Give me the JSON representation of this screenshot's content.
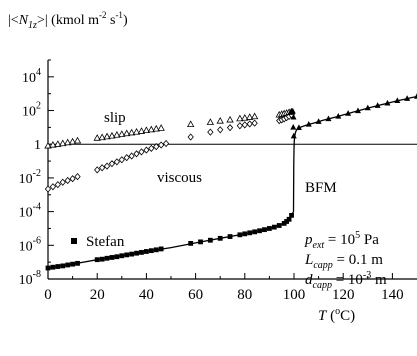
{
  "chart_data": {
    "type": "scatter",
    "ylabel": "|<N1z>| (kmol m-2 s-1)",
    "xlabel": "T (°C)",
    "xlim": [
      0,
      150
    ],
    "ylim_log10": [
      -8,
      5
    ],
    "y_log_scale": true,
    "grid": false,
    "x_ticks": [
      "0",
      "20",
      "40",
      "60",
      "80",
      "100",
      "120",
      "140"
    ],
    "y_ticks": [
      {
        "exp": 4,
        "label": "10^4"
      },
      {
        "exp": 2,
        "label": "10^2"
      },
      {
        "exp": 0,
        "label": "1"
      },
      {
        "exp": -2,
        "label": "10^-2"
      },
      {
        "exp": -4,
        "label": "10^-4"
      },
      {
        "exp": -6,
        "label": "10^-6"
      },
      {
        "exp": -8,
        "label": "10^-8"
      }
    ],
    "reference_line_y": 1,
    "series": [
      {
        "name": "slip",
        "marker": "triangle-open",
        "points": [
          [
            0,
            0.8
          ],
          [
            2,
            0.9
          ],
          [
            4,
            1.0
          ],
          [
            6,
            1.1
          ],
          [
            8,
            1.25
          ],
          [
            10,
            1.4
          ],
          [
            12,
            1.6
          ],
          [
            20,
            2.3
          ],
          [
            22,
            2.5
          ],
          [
            24,
            2.8
          ],
          [
            26,
            3.1
          ],
          [
            28,
            3.5
          ],
          [
            30,
            3.9
          ],
          [
            32,
            4.3
          ],
          [
            34,
            4.8
          ],
          [
            36,
            5.3
          ],
          [
            38,
            5.9
          ],
          [
            40,
            6.6
          ],
          [
            42,
            7.3
          ],
          [
            44,
            8.1
          ],
          [
            46,
            9.0
          ],
          [
            58,
            15
          ],
          [
            66,
            20
          ],
          [
            70,
            24
          ],
          [
            74,
            28
          ],
          [
            78,
            33
          ],
          [
            80,
            36
          ],
          [
            82,
            40
          ],
          [
            84,
            44
          ],
          [
            94,
            55
          ],
          [
            95,
            60
          ],
          [
            96,
            65
          ],
          [
            97,
            70
          ],
          [
            98,
            78
          ],
          [
            99,
            85
          ]
        ]
      },
      {
        "name": "viscous",
        "marker": "diamond-open",
        "points": [
          [
            0,
            0.0022
          ],
          [
            2,
            0.003
          ],
          [
            4,
            0.004
          ],
          [
            6,
            0.0055
          ],
          [
            8,
            0.007
          ],
          [
            10,
            0.009
          ],
          [
            12,
            0.012
          ],
          [
            20,
            0.03
          ],
          [
            22,
            0.04
          ],
          [
            24,
            0.05
          ],
          [
            26,
            0.07
          ],
          [
            28,
            0.09
          ],
          [
            30,
            0.12
          ],
          [
            32,
            0.16
          ],
          [
            34,
            0.2
          ],
          [
            36,
            0.27
          ],
          [
            38,
            0.35
          ],
          [
            40,
            0.45
          ],
          [
            42,
            0.57
          ],
          [
            44,
            0.72
          ],
          [
            46,
            0.9
          ],
          [
            48,
            1.1
          ],
          [
            58,
            2.7
          ],
          [
            66,
            5.2
          ],
          [
            70,
            7.2
          ],
          [
            74,
            9.6
          ],
          [
            78,
            12.5
          ],
          [
            80,
            14
          ],
          [
            82,
            16
          ],
          [
            84,
            18
          ],
          [
            94,
            25
          ],
          [
            95,
            28
          ],
          [
            96,
            32
          ],
          [
            97,
            38
          ],
          [
            98,
            45
          ],
          [
            99,
            55
          ]
        ]
      },
      {
        "name": "Stefan",
        "marker": "square-filled",
        "points": [
          [
            0,
            4.5e-08
          ],
          [
            2,
            5e-08
          ],
          [
            4,
            5.5e-08
          ],
          [
            6,
            6e-08
          ],
          [
            8,
            6.8e-08
          ],
          [
            10,
            7.6e-08
          ],
          [
            12,
            8.5e-08
          ],
          [
            20,
            1.4e-07
          ],
          [
            22,
            1.5e-07
          ],
          [
            24,
            1.7e-07
          ],
          [
            26,
            1.9e-07
          ],
          [
            28,
            2.1e-07
          ],
          [
            30,
            2.4e-07
          ],
          [
            32,
            2.7e-07
          ],
          [
            34,
            3e-07
          ],
          [
            36,
            3.4e-07
          ],
          [
            38,
            3.8e-07
          ],
          [
            40,
            4.3e-07
          ],
          [
            42,
            4.8e-07
          ],
          [
            44,
            5.4e-07
          ],
          [
            46,
            6.1e-07
          ],
          [
            58,
            1.3e-06
          ],
          [
            62,
            1.6e-06
          ],
          [
            66,
            2e-06
          ],
          [
            70,
            2.6e-06
          ],
          [
            74,
            3.3e-06
          ],
          [
            78,
            4.2e-06
          ],
          [
            80,
            4.8e-06
          ],
          [
            82,
            5.5e-06
          ],
          [
            84,
            6.3e-06
          ],
          [
            86,
            7.3e-06
          ],
          [
            88,
            8.5e-06
          ],
          [
            90,
            1e-05
          ],
          [
            92,
            1.2e-05
          ],
          [
            94,
            1.5e-05
          ],
          [
            96,
            2e-05
          ],
          [
            97,
            2.6e-05
          ],
          [
            98,
            3.5e-05
          ],
          [
            99,
            6e-05
          ]
        ]
      },
      {
        "name": "BFM",
        "marker": "triangle-filled",
        "line": true,
        "points": [
          [
            0,
            4.5e-08
          ],
          [
            10,
            7.6e-08
          ],
          [
            20,
            1.4e-07
          ],
          [
            30,
            2.4e-07
          ],
          [
            40,
            4.3e-07
          ],
          [
            50,
            7.3e-07
          ],
          [
            60,
            1.4e-06
          ],
          [
            70,
            2.6e-06
          ],
          [
            80,
            4.8e-06
          ],
          [
            90,
            1e-05
          ],
          [
            96,
            2e-05
          ],
          [
            99,
            6e-05
          ],
          [
            99.8,
            0.0001
          ],
          [
            99.9,
            0.05
          ],
          [
            100,
            0.5
          ],
          [
            100.1,
            1.5
          ],
          [
            100.3,
            3
          ],
          [
            100.6,
            5
          ],
          [
            101,
            7
          ],
          [
            102,
            9.5
          ],
          [
            104,
            12
          ],
          [
            106,
            15
          ],
          [
            108,
            18
          ],
          [
            110,
            22
          ],
          [
            112,
            27
          ],
          [
            114,
            32
          ],
          [
            116,
            38
          ],
          [
            118,
            45
          ],
          [
            120,
            55
          ],
          [
            122,
            66
          ],
          [
            124,
            80
          ],
          [
            126,
            95
          ],
          [
            128,
            115
          ],
          [
            130,
            140
          ],
          [
            132,
            165
          ],
          [
            134,
            195
          ],
          [
            136,
            230
          ],
          [
            138,
            270
          ],
          [
            140,
            320
          ],
          [
            142,
            380
          ],
          [
            144,
            440
          ],
          [
            146,
            510
          ],
          [
            148,
            590
          ],
          [
            150,
            680
          ]
        ],
        "extra_markers": [
          [
            98.5,
            75
          ],
          [
            99,
            85
          ],
          [
            99.5,
            90
          ],
          [
            99.8,
            40
          ],
          [
            99.7,
            10
          ],
          [
            99.9,
            3
          ],
          [
            102,
            9.5
          ],
          [
            106,
            15
          ],
          [
            110,
            22
          ],
          [
            114,
            32
          ],
          [
            118,
            45
          ],
          [
            122,
            66
          ],
          [
            126,
            95
          ],
          [
            130,
            140
          ],
          [
            134,
            195
          ],
          [
            138,
            270
          ],
          [
            142,
            380
          ],
          [
            146,
            510
          ],
          [
            150,
            680
          ]
        ]
      }
    ],
    "annotations": {
      "slip": "slip",
      "viscous": "viscous",
      "bfm": "BFM",
      "stefan": "Stefan"
    },
    "parameters": [
      {
        "symbol": "p",
        "sub": "ext",
        "value": " = 10",
        "sup": "5",
        "unit": " Pa"
      },
      {
        "symbol": "L",
        "sub": "capp",
        "value": " = 0.1 m",
        "sup": "",
        "unit": ""
      },
      {
        "symbol": "d",
        "sub": "capp",
        "value": " = 10",
        "sup": "-3",
        "unit": " m"
      }
    ]
  }
}
